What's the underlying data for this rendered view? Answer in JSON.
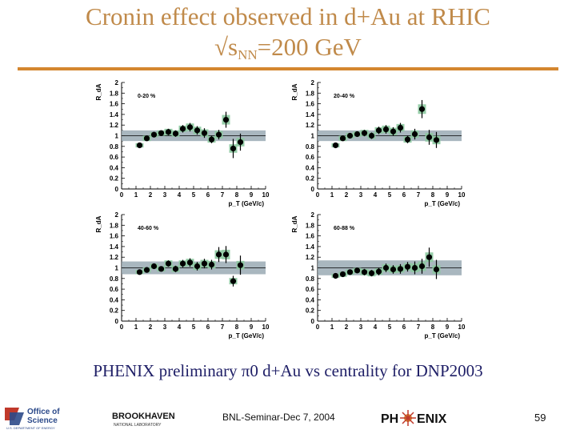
{
  "slide": {
    "title_line1": "Cronin effect observed in d+Au at RHIC",
    "title_line2_pre": "√s",
    "title_line2_sub": "NN",
    "title_line2_post": "=200 GeV",
    "caption": "PHENIX preliminary π0 d+Au vs centrality for DNP2003",
    "footer_center": "BNL-Seminar-Dec 7, 2004",
    "page_number": "59",
    "logos": {
      "doe_line1": "Office of",
      "doe_line2": "Science",
      "doe_line3": "U.S. DEPARTMENT OF ENERGY",
      "bnl": "BROOKHAVEN",
      "bnl_sub": "NATIONAL LABORATORY",
      "phenix_left": "PH",
      "phenix_right": "ENIX"
    }
  },
  "colors": {
    "title": "#c08a4a",
    "rule": "#d4862f",
    "band": "#9aaab4",
    "sys_box": "#8cc9a0",
    "caption": "#1e1e66"
  },
  "chart_data": [
    {
      "type": "scatter",
      "panel_label": "0-20 %",
      "ylabel": "R_dA",
      "xlabel": "p_T (GeV/c)",
      "xlim": [
        0,
        10
      ],
      "ylim": [
        0,
        2
      ],
      "xticks": [
        "0",
        "1",
        "2",
        "3",
        "4",
        "5",
        "6",
        "7",
        "8",
        "9",
        "10"
      ],
      "yticks": [
        "0",
        "0.2",
        "0.4",
        "0.6",
        "0.8",
        "1",
        "1.2",
        "1.4",
        "1.6",
        "1.8",
        "2"
      ],
      "band": [
        0.9,
        1.1
      ],
      "x": [
        1.25,
        1.75,
        2.25,
        2.75,
        3.25,
        3.75,
        4.25,
        4.75,
        5.25,
        5.75,
        6.25,
        6.75,
        7.25,
        7.75,
        8.25
      ],
      "y": [
        0.82,
        0.95,
        1.02,
        1.05,
        1.07,
        1.04,
        1.13,
        1.16,
        1.1,
        1.05,
        0.93,
        1.02,
        1.3,
        0.76,
        0.88
      ],
      "err": [
        0.03,
        0.04,
        0.05,
        0.05,
        0.06,
        0.06,
        0.07,
        0.08,
        0.08,
        0.09,
        0.07,
        0.09,
        0.15,
        0.18,
        0.16
      ],
      "sys": [
        0.04,
        0.05,
        0.05,
        0.05,
        0.06,
        0.06,
        0.06,
        0.07,
        0.07,
        0.07,
        0.06,
        0.07,
        0.09,
        0.08,
        0.08
      ]
    },
    {
      "type": "scatter",
      "panel_label": "20-40 %",
      "ylabel": "R_dA",
      "xlabel": "p_T (GeV/c)",
      "xlim": [
        0,
        10
      ],
      "ylim": [
        0,
        2
      ],
      "xticks": [
        "0",
        "1",
        "2",
        "3",
        "4",
        "5",
        "6",
        "7",
        "8",
        "9",
        "10"
      ],
      "yticks": [
        "0",
        "0.2",
        "0.4",
        "0.6",
        "0.8",
        "1",
        "1.2",
        "1.4",
        "1.6",
        "1.8",
        "2"
      ],
      "band": [
        0.9,
        1.1
      ],
      "x": [
        1.25,
        1.75,
        2.25,
        2.75,
        3.25,
        3.75,
        4.25,
        4.75,
        5.25,
        5.75,
        6.25,
        6.75,
        7.25,
        7.75,
        8.25
      ],
      "y": [
        0.82,
        0.95,
        1.0,
        1.03,
        1.05,
        1.0,
        1.1,
        1.12,
        1.08,
        1.15,
        0.93,
        1.03,
        1.5,
        0.97,
        0.92
      ],
      "err": [
        0.03,
        0.04,
        0.05,
        0.05,
        0.06,
        0.06,
        0.07,
        0.08,
        0.08,
        0.09,
        0.07,
        0.1,
        0.17,
        0.14,
        0.15
      ],
      "sys": [
        0.04,
        0.05,
        0.05,
        0.05,
        0.06,
        0.06,
        0.06,
        0.07,
        0.07,
        0.07,
        0.06,
        0.07,
        0.09,
        0.08,
        0.08
      ]
    },
    {
      "type": "scatter",
      "panel_label": "40-60 %",
      "ylabel": "R_dA",
      "xlabel": "p_T (GeV/c)",
      "xlim": [
        0,
        10
      ],
      "ylim": [
        0,
        2
      ],
      "xticks": [
        "0",
        "1",
        "2",
        "3",
        "4",
        "5",
        "6",
        "7",
        "8",
        "9",
        "10"
      ],
      "yticks": [
        "0",
        "0.2",
        "0.4",
        "0.6",
        "0.8",
        "1",
        "1.2",
        "1.4",
        "1.6",
        "1.8",
        "2"
      ],
      "band": [
        0.88,
        1.12
      ],
      "x": [
        1.25,
        1.75,
        2.25,
        2.75,
        3.25,
        3.75,
        4.25,
        4.75,
        5.25,
        5.75,
        6.25,
        6.75,
        7.25,
        7.75,
        8.25
      ],
      "y": [
        0.92,
        0.96,
        1.03,
        0.98,
        1.08,
        0.98,
        1.08,
        1.1,
        1.03,
        1.08,
        1.06,
        1.25,
        1.25,
        0.75,
        1.05
      ],
      "err": [
        0.03,
        0.04,
        0.05,
        0.05,
        0.06,
        0.06,
        0.07,
        0.08,
        0.08,
        0.09,
        0.09,
        0.14,
        0.16,
        0.1,
        0.18
      ],
      "sys": [
        0.04,
        0.05,
        0.05,
        0.05,
        0.06,
        0.06,
        0.06,
        0.07,
        0.07,
        0.07,
        0.07,
        0.08,
        0.09,
        0.06,
        0.08
      ]
    },
    {
      "type": "scatter",
      "panel_label": "60-88 %",
      "ylabel": "R_dA",
      "xlabel": "p_T (GeV/c)",
      "xlim": [
        0,
        10
      ],
      "ylim": [
        0,
        2
      ],
      "xticks": [
        "0",
        "1",
        "2",
        "3",
        "4",
        "5",
        "6",
        "7",
        "8",
        "9",
        "10"
      ],
      "yticks": [
        "0",
        "0.2",
        "0.4",
        "0.6",
        "0.8",
        "1",
        "1.2",
        "1.4",
        "1.6",
        "1.8",
        "2"
      ],
      "band": [
        0.86,
        1.14
      ],
      "x": [
        1.25,
        1.75,
        2.25,
        2.75,
        3.25,
        3.75,
        4.25,
        4.75,
        5.25,
        5.75,
        6.25,
        6.75,
        7.25,
        7.75,
        8.25
      ],
      "y": [
        0.85,
        0.88,
        0.92,
        0.95,
        0.92,
        0.9,
        0.93,
        1.0,
        0.97,
        0.98,
        1.02,
        1.0,
        1.03,
        1.2,
        0.97
      ],
      "err": [
        0.03,
        0.04,
        0.05,
        0.05,
        0.06,
        0.06,
        0.07,
        0.08,
        0.08,
        0.09,
        0.09,
        0.12,
        0.14,
        0.18,
        0.18
      ],
      "sys": [
        0.04,
        0.05,
        0.05,
        0.05,
        0.06,
        0.06,
        0.06,
        0.07,
        0.07,
        0.07,
        0.07,
        0.08,
        0.09,
        0.09,
        0.08
      ]
    }
  ]
}
